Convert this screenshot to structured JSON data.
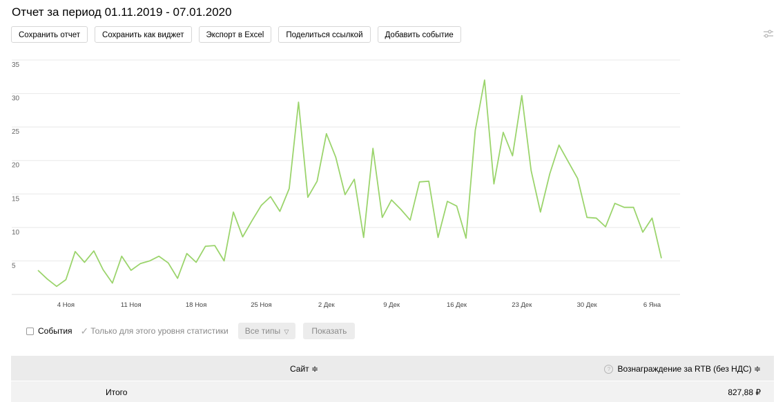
{
  "report": {
    "title": "Отчет за период 01.11.2019 - 07.01.2020"
  },
  "toolbar": {
    "save": "Сохранить отчет",
    "save_widget": "Сохранить как виджет",
    "export": "Экспорт в Excel",
    "share": "Поделиться ссылкой",
    "add_event": "Добавить событие"
  },
  "settings_icon": "sliders-icon",
  "chart_data": {
    "type": "line",
    "title": "",
    "xlabel": "",
    "ylabel": "",
    "ylim": [
      0,
      35
    ],
    "yticks": [
      5,
      10,
      15,
      20,
      25,
      30,
      35
    ],
    "grid": true,
    "color": "#9bd46c",
    "x_tick_labels": [
      "4 Ноя",
      "11 Ноя",
      "18 Ноя",
      "25 Ноя",
      "2 Дек",
      "9 Дек",
      "16 Дек",
      "23 Дек",
      "30 Дек",
      "6 Яна"
    ],
    "x_tick_indices": [
      3,
      10,
      17,
      24,
      31,
      38,
      45,
      52,
      59,
      66
    ],
    "x_start": "2019-11-01",
    "x_end": "2020-01-07",
    "values": [
      3.6,
      2.3,
      1.2,
      2.2,
      6.4,
      4.8,
      6.5,
      3.7,
      1.7,
      5.7,
      3.6,
      4.6,
      5.0,
      5.7,
      4.7,
      2.4,
      6.1,
      4.8,
      7.2,
      7.3,
      5.0,
      12.3,
      8.6,
      11.0,
      13.3,
      14.6,
      12.4,
      15.8,
      28.7,
      14.5,
      16.9,
      24.0,
      20.5,
      14.9,
      17.2,
      8.5,
      21.8,
      11.5,
      14.1,
      12.7,
      11.1,
      16.8,
      16.9,
      8.5,
      13.9,
      13.2,
      8.4,
      24.5,
      32.0,
      16.5,
      24.2,
      20.7,
      29.7,
      18.5,
      12.3,
      18.0,
      22.3,
      19.8,
      17.3,
      11.5,
      11.4,
      10.1,
      13.6,
      13.0,
      13.0,
      9.3,
      11.4,
      5.4
    ]
  },
  "filters": {
    "events_label": "События",
    "only_level_label": "Только для этого уровня статистики",
    "types_select": "Все типы",
    "show_button": "Показать"
  },
  "table": {
    "col_site": "Сайт ≑",
    "col_reward": "Вознаграждение за RTB (без НДС) ≑",
    "total_label": "Итого",
    "total_value": "827,88 ₽"
  }
}
